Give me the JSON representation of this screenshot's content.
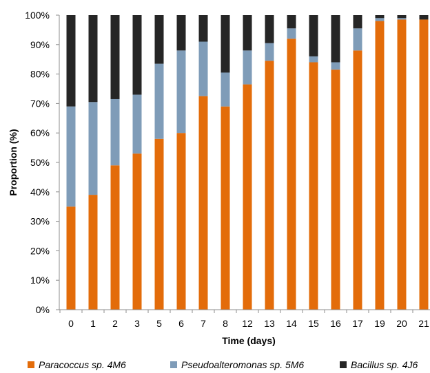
{
  "chart_data": {
    "type": "bar",
    "stacked": true,
    "title": "",
    "xlabel": "Time (days)",
    "ylabel": "Proportion (%)",
    "ylim": [
      0,
      100
    ],
    "yticks": [
      "0%",
      "10%",
      "20%",
      "30%",
      "40%",
      "50%",
      "60%",
      "70%",
      "80%",
      "90%",
      "100%"
    ],
    "categories": [
      "0",
      "1",
      "2",
      "3",
      "5",
      "6",
      "7",
      "8",
      "12",
      "13",
      "14",
      "15",
      "16",
      "17",
      "19",
      "20",
      "21"
    ],
    "grid": false,
    "legend_position": "bottom",
    "series": [
      {
        "name": "Paracoccus sp. 4M6",
        "color": "#E36C0A",
        "values": [
          35.0,
          39.0,
          49.0,
          53.0,
          58.0,
          60.0,
          72.5,
          69.0,
          76.5,
          84.5,
          92.0,
          84.0,
          81.5,
          88.0,
          98.0,
          98.5,
          98.5
        ]
      },
      {
        "name": "Pseudoalteromonas sp. 5M6",
        "color": "#7F9CB8",
        "values": [
          34.0,
          31.5,
          22.5,
          20.0,
          25.5,
          28.0,
          18.5,
          11.5,
          11.5,
          6.0,
          3.5,
          2.0,
          2.5,
          7.5,
          1.0,
          0.5,
          0.0
        ]
      },
      {
        "name": "Bacillus sp. 4J6",
        "color": "#262626",
        "values": [
          31.0,
          29.5,
          28.5,
          27.0,
          16.5,
          12.0,
          9.0,
          19.5,
          12.0,
          9.5,
          4.5,
          14.0,
          16.0,
          4.5,
          1.0,
          1.0,
          1.5
        ]
      }
    ]
  }
}
